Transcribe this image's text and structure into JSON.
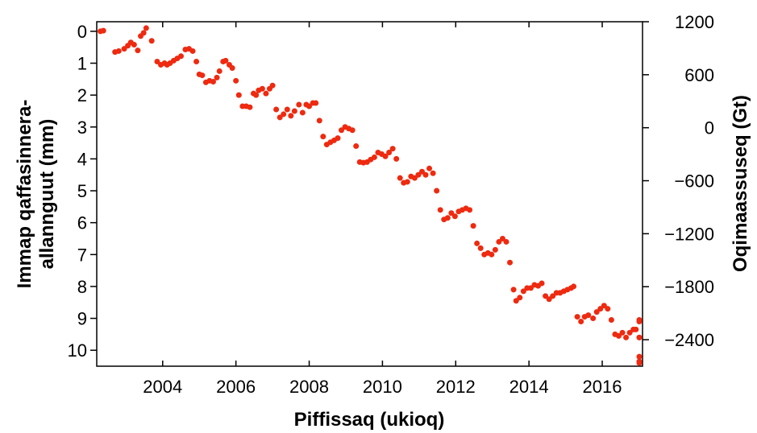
{
  "chart_data": {
    "type": "scatter",
    "title": "",
    "xlabel": "Piffissaq (ukioq)",
    "ylabel_left": "Immap qaffasinnera-allannguut (mm)",
    "ylabel_left_lines": [
      "Immap qaffasinnera-",
      "allannguut (mm)"
    ],
    "ylabel_right": "Oqimaassuseq (Gt)",
    "xlim": [
      2002.2,
      2017.1
    ],
    "ylim_left": [
      10.5,
      -0.3
    ],
    "ylim_right": [
      -2700,
      1200
    ],
    "left_axis_inverted": true,
    "grid": false,
    "legend": "none",
    "marker_color": "#ee2a10",
    "x_ticks": [
      2004,
      2006,
      2008,
      2010,
      2012,
      2014,
      2016
    ],
    "x_tick_labels": [
      "2004",
      "2006",
      "2008",
      "2010",
      "2012",
      "2014",
      "2016"
    ],
    "y_left_ticks": [
      0,
      1,
      2,
      3,
      4,
      5,
      6,
      7,
      8,
      9,
      10
    ],
    "y_left_tick_labels": [
      "0",
      "1",
      "2",
      "3",
      "4",
      "5",
      "6",
      "7",
      "8",
      "9",
      "10"
    ],
    "y_right_ticks": [
      1200,
      600,
      0,
      -600,
      -1200,
      -1800,
      -2400
    ],
    "y_right_tick_labels": [
      "1200",
      "600",
      "0",
      "−600",
      "−1200",
      "−1800",
      "−2400"
    ],
    "series": [
      {
        "axis": "left",
        "points": [
          [
            2002.3,
            0.0
          ],
          [
            2002.38,
            -0.02
          ],
          [
            2002.7,
            0.65
          ],
          [
            2002.8,
            0.62
          ],
          [
            2002.95,
            0.55
          ],
          [
            2003.05,
            0.45
          ],
          [
            2003.13,
            0.35
          ],
          [
            2003.22,
            0.42
          ],
          [
            2003.32,
            0.6
          ],
          [
            2003.4,
            0.15
          ],
          [
            2003.48,
            0.05
          ],
          [
            2003.55,
            -0.1
          ],
          [
            2003.7,
            0.3
          ],
          [
            2003.85,
            0.95
          ],
          [
            2003.95,
            1.05
          ],
          [
            2004.05,
            1.0
          ],
          [
            2004.12,
            1.05
          ],
          [
            2004.2,
            1.0
          ],
          [
            2004.3,
            0.92
          ],
          [
            2004.4,
            0.85
          ],
          [
            2004.5,
            0.78
          ],
          [
            2004.62,
            0.57
          ],
          [
            2004.72,
            0.55
          ],
          [
            2004.82,
            0.62
          ],
          [
            2004.92,
            0.95
          ],
          [
            2005.0,
            1.35
          ],
          [
            2005.08,
            1.38
          ],
          [
            2005.18,
            1.6
          ],
          [
            2005.28,
            1.55
          ],
          [
            2005.38,
            1.58
          ],
          [
            2005.48,
            1.45
          ],
          [
            2005.55,
            1.25
          ],
          [
            2005.65,
            0.95
          ],
          [
            2005.72,
            0.92
          ],
          [
            2005.82,
            1.05
          ],
          [
            2005.9,
            1.15
          ],
          [
            2006.0,
            1.55
          ],
          [
            2006.08,
            2.0
          ],
          [
            2006.18,
            2.35
          ],
          [
            2006.28,
            2.35
          ],
          [
            2006.38,
            2.38
          ],
          [
            2006.48,
            1.95
          ],
          [
            2006.55,
            2.0
          ],
          [
            2006.62,
            1.85
          ],
          [
            2006.72,
            1.8
          ],
          [
            2006.82,
            1.95
          ],
          [
            2006.92,
            1.8
          ],
          [
            2007.0,
            1.7
          ],
          [
            2007.1,
            2.45
          ],
          [
            2007.2,
            2.7
          ],
          [
            2007.3,
            2.6
          ],
          [
            2007.4,
            2.45
          ],
          [
            2007.5,
            2.65
          ],
          [
            2007.6,
            2.5
          ],
          [
            2007.72,
            2.3
          ],
          [
            2007.82,
            2.55
          ],
          [
            2007.92,
            2.3
          ],
          [
            2008.0,
            2.35
          ],
          [
            2008.1,
            2.25
          ],
          [
            2008.18,
            2.25
          ],
          [
            2008.28,
            2.8
          ],
          [
            2008.38,
            3.3
          ],
          [
            2008.48,
            3.55
          ],
          [
            2008.58,
            3.48
          ],
          [
            2008.68,
            3.42
          ],
          [
            2008.78,
            3.35
          ],
          [
            2008.88,
            3.1
          ],
          [
            2008.98,
            3.0
          ],
          [
            2009.08,
            3.05
          ],
          [
            2009.18,
            3.1
          ],
          [
            2009.28,
            3.6
          ],
          [
            2009.38,
            4.1
          ],
          [
            2009.48,
            4.12
          ],
          [
            2009.58,
            4.1
          ],
          [
            2009.68,
            4.02
          ],
          [
            2009.78,
            3.95
          ],
          [
            2009.88,
            3.8
          ],
          [
            2009.98,
            3.85
          ],
          [
            2010.08,
            3.92
          ],
          [
            2010.18,
            3.8
          ],
          [
            2010.28,
            3.68
          ],
          [
            2010.38,
            4.0
          ],
          [
            2010.48,
            4.6
          ],
          [
            2010.58,
            4.75
          ],
          [
            2010.68,
            4.72
          ],
          [
            2010.78,
            4.55
          ],
          [
            2010.88,
            4.6
          ],
          [
            2010.98,
            4.5
          ],
          [
            2011.08,
            4.4
          ],
          [
            2011.18,
            4.5
          ],
          [
            2011.28,
            4.3
          ],
          [
            2011.38,
            4.45
          ],
          [
            2011.48,
            5.0
          ],
          [
            2011.58,
            5.6
          ],
          [
            2011.68,
            5.9
          ],
          [
            2011.78,
            5.85
          ],
          [
            2011.88,
            5.7
          ],
          [
            2011.98,
            5.8
          ],
          [
            2012.08,
            5.65
          ],
          [
            2012.18,
            5.6
          ],
          [
            2012.28,
            5.55
          ],
          [
            2012.38,
            5.6
          ],
          [
            2012.48,
            6.1
          ],
          [
            2012.58,
            6.65
          ],
          [
            2012.68,
            6.8
          ],
          [
            2012.78,
            7.0
          ],
          [
            2012.88,
            6.95
          ],
          [
            2012.98,
            7.0
          ],
          [
            2013.08,
            6.85
          ],
          [
            2013.18,
            6.6
          ],
          [
            2013.28,
            6.5
          ],
          [
            2013.38,
            6.6
          ],
          [
            2013.48,
            7.25
          ],
          [
            2013.58,
            8.1
          ],
          [
            2013.65,
            8.45
          ],
          [
            2013.75,
            8.35
          ],
          [
            2013.85,
            8.15
          ],
          [
            2013.95,
            8.05
          ],
          [
            2014.05,
            8.05
          ],
          [
            2014.15,
            7.95
          ],
          [
            2014.25,
            7.98
          ],
          [
            2014.35,
            7.9
          ],
          [
            2014.45,
            8.3
          ],
          [
            2014.55,
            8.4
          ],
          [
            2014.65,
            8.3
          ],
          [
            2014.75,
            8.2
          ],
          [
            2014.85,
            8.2
          ],
          [
            2014.95,
            8.15
          ],
          [
            2015.05,
            8.1
          ],
          [
            2015.15,
            8.05
          ],
          [
            2015.22,
            8.0
          ],
          [
            2015.32,
            8.95
          ],
          [
            2015.42,
            9.1
          ],
          [
            2015.52,
            8.95
          ],
          [
            2015.62,
            8.9
          ],
          [
            2015.75,
            9.0
          ],
          [
            2015.85,
            8.8
          ],
          [
            2015.95,
            8.7
          ],
          [
            2016.05,
            8.6
          ],
          [
            2016.15,
            8.7
          ],
          [
            2016.25,
            9.05
          ],
          [
            2016.35,
            9.5
          ],
          [
            2016.45,
            9.55
          ],
          [
            2016.55,
            9.45
          ],
          [
            2016.65,
            9.6
          ],
          [
            2016.75,
            9.45
          ],
          [
            2016.85,
            9.35
          ],
          [
            2016.92,
            9.35
          ],
          [
            2017.02,
            9.05
          ],
          [
            2017.1,
            9.1
          ],
          [
            2017.2,
            9.6
          ],
          [
            2017.28,
            10.35
          ],
          [
            2017.42,
            10.2
          ],
          [
            2017.52,
            10.4
          ],
          [
            2017.6,
            9.6
          ]
        ]
      }
    ]
  }
}
